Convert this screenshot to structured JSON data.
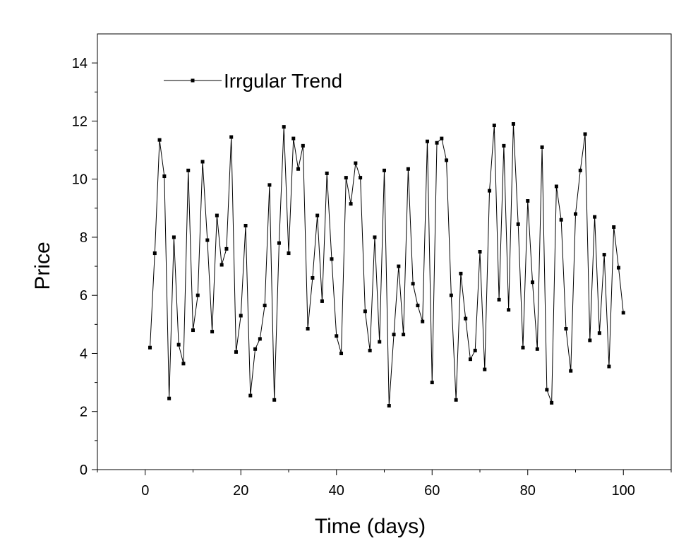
{
  "chart_data": {
    "type": "line",
    "xlabel": "Time (days)",
    "ylabel": "Price",
    "xlim": [
      -10,
      110
    ],
    "ylim": [
      0,
      15
    ],
    "xticks": [
      0,
      20,
      40,
      60,
      80,
      100
    ],
    "yticks": [
      0,
      2,
      4,
      6,
      8,
      10,
      12,
      14
    ],
    "grid": false,
    "legend_position": "top-left",
    "line_color": "#000000",
    "series": [
      {
        "name": "Irrgular Trend",
        "x": [
          1,
          2,
          3,
          4,
          5,
          6,
          7,
          8,
          9,
          10,
          11,
          12,
          13,
          14,
          15,
          16,
          17,
          18,
          19,
          20,
          21,
          22,
          23,
          24,
          25,
          26,
          27,
          28,
          29,
          30,
          31,
          32,
          33,
          34,
          35,
          36,
          37,
          38,
          39,
          40,
          41,
          42,
          43,
          44,
          45,
          46,
          47,
          48,
          49,
          50,
          51,
          52,
          53,
          54,
          55,
          56,
          57,
          58,
          59,
          60,
          61,
          62,
          63,
          64,
          65,
          66,
          67,
          68,
          69,
          70,
          71,
          72,
          73,
          74,
          75,
          76,
          77,
          78,
          79,
          80,
          81,
          82,
          83,
          84,
          85,
          86,
          87,
          88,
          89,
          90,
          91,
          92,
          93,
          94,
          95,
          96,
          97,
          98,
          99,
          100
        ],
        "values": [
          4.2,
          7.45,
          11.35,
          10.1,
          2.45,
          8.0,
          4.3,
          3.65,
          10.3,
          4.8,
          6.0,
          10.6,
          7.9,
          4.75,
          8.75,
          7.05,
          7.6,
          11.45,
          4.05,
          5.3,
          8.4,
          2.55,
          4.15,
          4.5,
          5.65,
          9.8,
          2.4,
          7.8,
          11.8,
          7.45,
          11.4,
          10.35,
          11.15,
          4.85,
          6.6,
          8.75,
          5.8,
          10.2,
          7.25,
          4.6,
          4.0,
          10.05,
          9.15,
          10.55,
          10.05,
          5.45,
          4.1,
          8.0,
          4.4,
          10.3,
          2.2,
          4.65,
          7.0,
          4.65,
          10.35,
          6.4,
          5.65,
          5.1,
          11.3,
          3.0,
          11.25,
          11.4,
          10.65,
          6.0,
          2.4,
          6.75,
          5.2,
          3.8,
          4.1,
          7.5,
          3.45,
          9.6,
          11.85,
          5.85,
          11.15,
          5.5,
          11.9,
          8.45,
          4.2,
          9.25,
          6.45,
          4.15,
          11.1,
          2.75,
          2.3,
          9.75,
          8.6,
          4.85,
          3.4,
          8.8,
          10.3,
          11.55,
          4.45,
          8.7,
          4.7,
          7.4,
          3.55,
          8.35,
          6.95,
          5.4
        ]
      }
    ]
  }
}
